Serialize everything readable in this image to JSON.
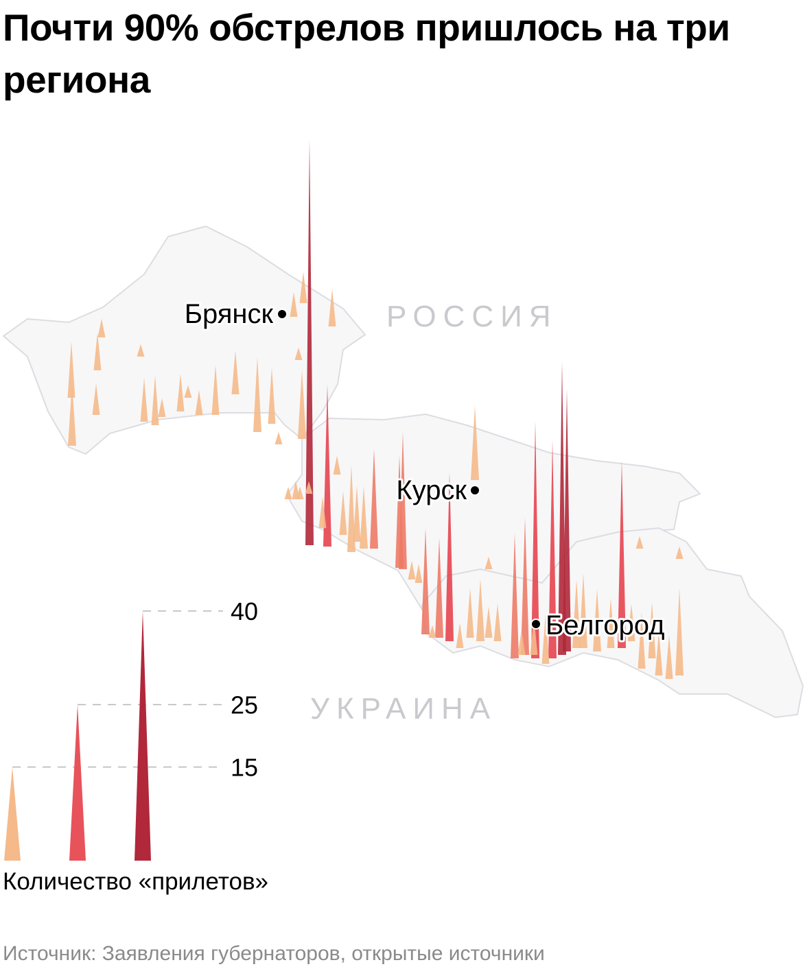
{
  "title": "Почти 90% обстрелов пришлось на три региона",
  "map": {
    "cities": [
      "Брянск",
      "Курск",
      "Белгород"
    ],
    "countries": [
      "РОССИЯ",
      "УКРАИНА"
    ],
    "region_fill": "#f7f7f8",
    "region_stroke": "#dcdde2"
  },
  "legend": {
    "label": "Количество «прилетов»",
    "ticks": [
      {
        "value": 15,
        "label": "15",
        "color": "#f5b98a"
      },
      {
        "value": 25,
        "label": "25",
        "color": "#e8525a"
      },
      {
        "value": 40,
        "label": "40",
        "color": "#b0283a"
      }
    ]
  },
  "spike_values": [
    65,
    26,
    22,
    38,
    42,
    47,
    35,
    20,
    22,
    27,
    30,
    18,
    16,
    17,
    16,
    14,
    11,
    9,
    8,
    6,
    5,
    8,
    12,
    10,
    9,
    7,
    6,
    4,
    3,
    7,
    12,
    10,
    8,
    6,
    5,
    4,
    3,
    3,
    2,
    2,
    14,
    9,
    7,
    12,
    10,
    8,
    6,
    9,
    7,
    11,
    8,
    6,
    4,
    10,
    9,
    7,
    5,
    3,
    2,
    2,
    3,
    2,
    2,
    6,
    5,
    4,
    3,
    2,
    2,
    2,
    2,
    2
  ],
  "source": "Источник: Заявления губернаторов, открытые источники"
}
